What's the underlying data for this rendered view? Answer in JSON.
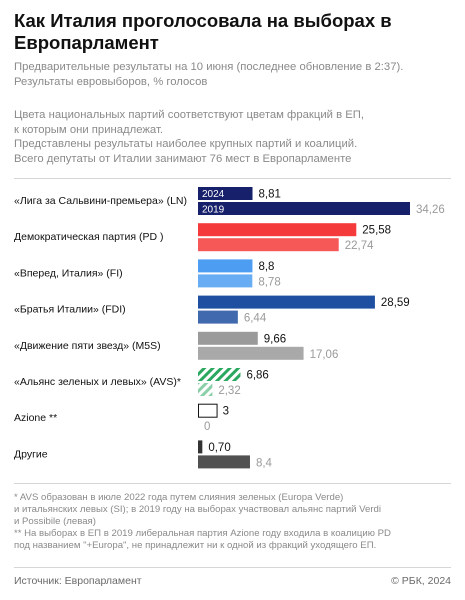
{
  "header": {
    "title": "Как Италия проголосовала на выборах в Европарламент",
    "subtitle": "Предварительные результаты на 10 июня (последнее обновление в 2:37). Результаты евровыборов, % голосов",
    "note_lines": [
      "Цвета национальных партий соответствуют цветам фракций в ЕП,",
      "к которым они принадлежат.",
      "Представлены результаты наиболее крупных партий и коалиций.",
      "Всего депутаты от Италии занимают 76 мест в Европарламенте"
    ]
  },
  "chart_data": {
    "type": "bar",
    "orientation": "horizontal",
    "series": [
      {
        "name": "2024"
      },
      {
        "name": "2019"
      }
    ],
    "categories": [
      {
        "label": "«Лига за Сальвини-премьера» (LN)",
        "v2024": 8.81,
        "v2019": 34.26,
        "t2024": "8,81",
        "t2019": "34,26",
        "color2024": "#17206b",
        "color2019": "#17206b",
        "hatched": false
      },
      {
        "label": "Демократическая партия (PD )",
        "v2024": 25.58,
        "v2019": 22.74,
        "t2024": "25,58",
        "t2019": "22,74",
        "color2024": "#f43a3a",
        "color2019": "#f43a3a",
        "hatched": false
      },
      {
        "label": "«Вперед, Италия» (FI)",
        "v2024": 8.8,
        "v2019": 8.78,
        "t2024": "8,8",
        "t2019": "8,78",
        "color2024": "#4d9df2",
        "color2019": "#4d9df2",
        "hatched": false
      },
      {
        "label": "«Братья Италии» (FDI)",
        "v2024": 28.59,
        "v2019": 6.44,
        "t2024": "28,59",
        "t2019": "6,44",
        "color2024": "#1f4fa0",
        "color2019": "#1f4fa0",
        "hatched": false
      },
      {
        "label": "«Движение пяти звезд» (M5S)",
        "v2024": 9.66,
        "v2019": 17.06,
        "t2024": "9,66",
        "t2019": "17,06",
        "color2024": "#9a9a9a",
        "color2019": "#9a9a9a",
        "hatched": false
      },
      {
        "label": "«Альянс зеленых и левых» (AVS)*",
        "v2024": 6.86,
        "v2019": 2.32,
        "t2024": "6,86",
        "t2019": "2,32",
        "color2024": "#2aa860",
        "color2019": "#2aa860",
        "hatched": true
      },
      {
        "label": "Azione **",
        "v2024": 3,
        "v2019": 0,
        "t2024": "3",
        "t2019": "0",
        "color2024": "#ffffff",
        "color2019": "#ffffff",
        "hatched": false,
        "outlined": true
      },
      {
        "label": "Другие",
        "v2024": 0.7,
        "v2019": 8.4,
        "t2024": "0,70",
        "t2019": "8,4",
        "color2024": "#333333",
        "color2019": "#333333",
        "hatched": false
      }
    ],
    "xlim": [
      0,
      34.26
    ]
  },
  "footnotes": [
    "* AVS образован в июле 2022 года путем слияния зеленых (Europa Verde)",
    "и итальянских левых (SI); в 2019 году на выборах участвовал альянс партий Verdi",
    "и Possibile (левая)",
    "** На выборах в ЕП в 2019 либеральная партия Azione году входила в коалицию PD",
    "под названием \"+Europa\", не принадлежит ни к одной из фракций уходящего ЕП."
  ],
  "footer": {
    "source": "Источник: Европарламент",
    "copyright": "© РБК, 2024"
  }
}
